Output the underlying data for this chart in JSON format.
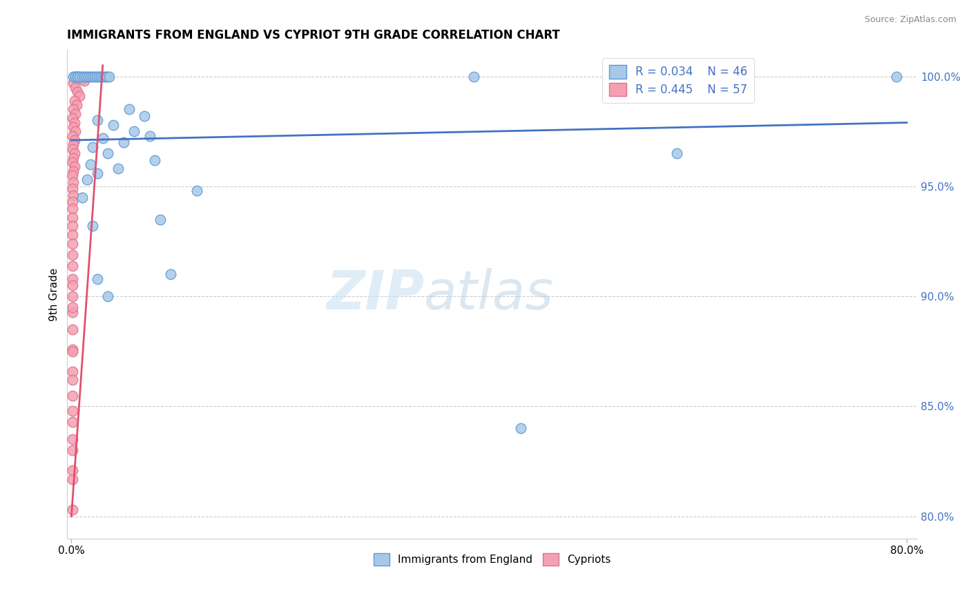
{
  "title": "IMMIGRANTS FROM ENGLAND VS CYPRIOT 9TH GRADE CORRELATION CHART",
  "source": "Source: ZipAtlas.com",
  "ylabel": "9th Grade",
  "watermark_zip": "ZIP",
  "watermark_atlas": "atlas",
  "legend_blue_label": "Immigrants from England",
  "legend_pink_label": "Cypriots",
  "r_blue": 0.034,
  "n_blue": 46,
  "r_pink": 0.445,
  "n_pink": 57,
  "xlim": [
    -0.004,
    0.81
  ],
  "ylim": [
    0.79,
    1.012
  ],
  "ytick_labels": [
    "80.0%",
    "85.0%",
    "90.0%",
    "95.0%",
    "100.0%"
  ],
  "ytick_values": [
    0.8,
    0.85,
    0.9,
    0.95,
    1.0
  ],
  "xtick_labels": [
    "0.0%",
    "80.0%"
  ],
  "xtick_values": [
    0.0,
    0.8
  ],
  "blue_color": "#a8c8e8",
  "blue_edge_color": "#5b9bd5",
  "blue_line_color": "#4472c4",
  "pink_color": "#f4a0b0",
  "pink_edge_color": "#e07090",
  "pink_line_color": "#e05070",
  "label_color": "#4472c4",
  "blue_scatter": [
    [
      0.002,
      1.0
    ],
    [
      0.004,
      1.0
    ],
    [
      0.006,
      1.0
    ],
    [
      0.008,
      1.0
    ],
    [
      0.01,
      1.0
    ],
    [
      0.012,
      1.0
    ],
    [
      0.014,
      1.0
    ],
    [
      0.016,
      1.0
    ],
    [
      0.018,
      1.0
    ],
    [
      0.02,
      1.0
    ],
    [
      0.022,
      1.0
    ],
    [
      0.024,
      1.0
    ],
    [
      0.026,
      1.0
    ],
    [
      0.028,
      1.0
    ],
    [
      0.03,
      1.0
    ],
    [
      0.032,
      1.0
    ],
    [
      0.034,
      1.0
    ],
    [
      0.036,
      1.0
    ],
    [
      0.385,
      1.0
    ],
    [
      0.055,
      0.985
    ],
    [
      0.07,
      0.982
    ],
    [
      0.025,
      0.98
    ],
    [
      0.04,
      0.978
    ],
    [
      0.06,
      0.975
    ],
    [
      0.075,
      0.973
    ],
    [
      0.03,
      0.972
    ],
    [
      0.05,
      0.97
    ],
    [
      0.02,
      0.968
    ],
    [
      0.035,
      0.965
    ],
    [
      0.08,
      0.962
    ],
    [
      0.018,
      0.96
    ],
    [
      0.045,
      0.958
    ],
    [
      0.025,
      0.956
    ],
    [
      0.015,
      0.953
    ],
    [
      0.12,
      0.948
    ],
    [
      0.01,
      0.945
    ],
    [
      0.085,
      0.935
    ],
    [
      0.02,
      0.932
    ],
    [
      0.095,
      0.91
    ],
    [
      0.025,
      0.908
    ],
    [
      0.58,
      0.965
    ],
    [
      0.035,
      0.9
    ],
    [
      0.43,
      0.84
    ],
    [
      0.79,
      1.0
    ]
  ],
  "pink_scatter": [
    [
      0.004,
      1.0
    ],
    [
      0.006,
      1.0
    ],
    [
      0.008,
      1.0
    ],
    [
      0.01,
      0.999
    ],
    [
      0.012,
      0.998
    ],
    [
      0.002,
      0.997
    ],
    [
      0.004,
      0.995
    ],
    [
      0.006,
      0.993
    ],
    [
      0.008,
      0.991
    ],
    [
      0.003,
      0.989
    ],
    [
      0.005,
      0.987
    ],
    [
      0.002,
      0.985
    ],
    [
      0.004,
      0.983
    ],
    [
      0.001,
      0.981
    ],
    [
      0.003,
      0.979
    ],
    [
      0.002,
      0.977
    ],
    [
      0.004,
      0.975
    ],
    [
      0.001,
      0.973
    ],
    [
      0.003,
      0.971
    ],
    [
      0.002,
      0.969
    ],
    [
      0.001,
      0.967
    ],
    [
      0.003,
      0.965
    ],
    [
      0.002,
      0.963
    ],
    [
      0.001,
      0.961
    ],
    [
      0.003,
      0.959
    ],
    [
      0.002,
      0.957
    ],
    [
      0.001,
      0.955
    ],
    [
      0.002,
      0.952
    ],
    [
      0.001,
      0.949
    ],
    [
      0.002,
      0.946
    ],
    [
      0.001,
      0.943
    ],
    [
      0.001,
      0.94
    ],
    [
      0.001,
      0.936
    ],
    [
      0.001,
      0.932
    ],
    [
      0.001,
      0.928
    ],
    [
      0.001,
      0.924
    ],
    [
      0.001,
      0.919
    ],
    [
      0.001,
      0.914
    ],
    [
      0.001,
      0.908
    ],
    [
      0.001,
      0.9
    ],
    [
      0.001,
      0.893
    ],
    [
      0.001,
      0.885
    ],
    [
      0.001,
      0.876
    ],
    [
      0.001,
      0.866
    ],
    [
      0.001,
      0.855
    ],
    [
      0.001,
      0.843
    ],
    [
      0.001,
      0.83
    ],
    [
      0.001,
      0.817
    ],
    [
      0.001,
      0.803
    ],
    [
      0.001,
      0.905
    ],
    [
      0.001,
      0.895
    ],
    [
      0.001,
      0.875
    ],
    [
      0.001,
      0.862
    ],
    [
      0.001,
      0.848
    ],
    [
      0.001,
      0.835
    ],
    [
      0.001,
      0.821
    ]
  ],
  "blue_line_x": [
    0.0,
    0.8
  ],
  "blue_line_y": [
    0.971,
    0.979
  ],
  "pink_line_x": [
    0.0,
    0.03
  ],
  "pink_line_y": [
    0.8,
    1.005
  ]
}
